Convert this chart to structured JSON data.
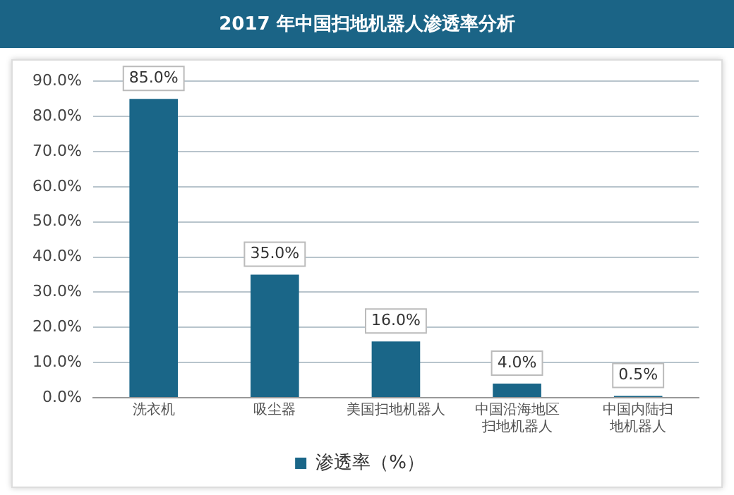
{
  "chart_data": {
    "type": "bar",
    "title": "2017 年中国扫地机器人渗透率分析",
    "categories": [
      "洗衣机",
      "吸尘器",
      "美国扫地机器人",
      "中国沿海地区扫地机器人",
      "中国内陆扫地机器人"
    ],
    "series": [
      {
        "name": "渗透率（%）",
        "color": "#1a6688",
        "values": [
          85,
          35,
          16,
          4,
          0.5
        ],
        "value_labels": [
          "85.0%",
          "35.0%",
          "16.0%",
          "4.0%",
          "0.5%"
        ]
      }
    ],
    "ylim": [
      0,
      90
    ],
    "yticks": [
      {
        "value": 0,
        "label": "0.0%"
      },
      {
        "value": 10,
        "label": "10.0%"
      },
      {
        "value": 20,
        "label": "20.0%"
      },
      {
        "value": 30,
        "label": "30.0%"
      },
      {
        "value": 40,
        "label": "40.0%"
      },
      {
        "value": 50,
        "label": "50.0%"
      },
      {
        "value": 60,
        "label": "60.0%"
      },
      {
        "value": 70,
        "label": "70.0%"
      },
      {
        "value": 80,
        "label": "80.0%"
      },
      {
        "value": 90,
        "label": "90.0%"
      }
    ],
    "grid": "y",
    "legend": "bottom"
  }
}
